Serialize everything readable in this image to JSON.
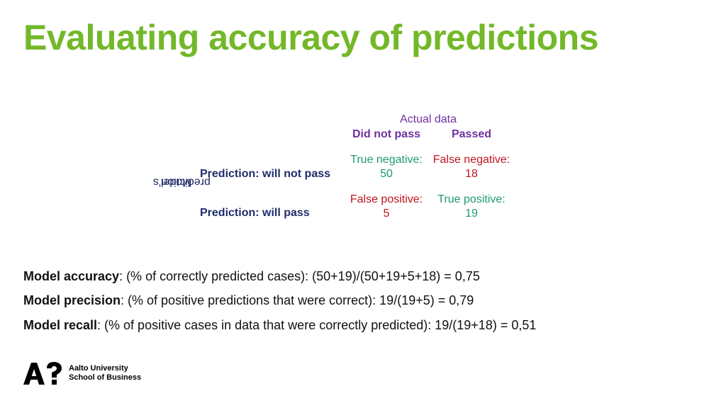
{
  "slide": {
    "title": "Evaluating accuracy of predictions"
  },
  "matrix": {
    "actual_header": "Actual data",
    "col_headers": [
      "Did not pass",
      "Passed"
    ],
    "row_axis_label_line1": "Model's",
    "row_axis_label_line2": "prediction",
    "rows": [
      {
        "label": "Prediction: will not pass",
        "cells": [
          {
            "label": "True negative:",
            "value": "50",
            "color": "#1e9c6a"
          },
          {
            "label": "False negative:",
            "value": "18",
            "color": "#c0141e"
          }
        ]
      },
      {
        "label": "Prediction: will pass",
        "cells": [
          {
            "label": "False positive:",
            "value": "5",
            "color": "#c0141e"
          },
          {
            "label": "True positive:",
            "value": "19",
            "color": "#1e9c6a"
          }
        ]
      }
    ]
  },
  "metrics": [
    {
      "term": "Model accuracy",
      "rest": ": (% of correctly predicted cases): (50+19)/(50+19+5+18) = 0,75"
    },
    {
      "term": "Model precision",
      "rest": ": (% of positive predictions that were correct): 19/(19+5) = 0,79"
    },
    {
      "term": "Model recall",
      "rest": ": (% of positive cases in data that were correctly predicted): 19/(19+18) = 0,51"
    }
  ],
  "logo": {
    "line1": "Aalto University",
    "line2": "School of Business"
  },
  "colors": {
    "title": "#73b829",
    "header_purple": "#7030a0",
    "navy": "#1f2d6b",
    "green": "#1e9c6a",
    "red": "#c0141e"
  }
}
